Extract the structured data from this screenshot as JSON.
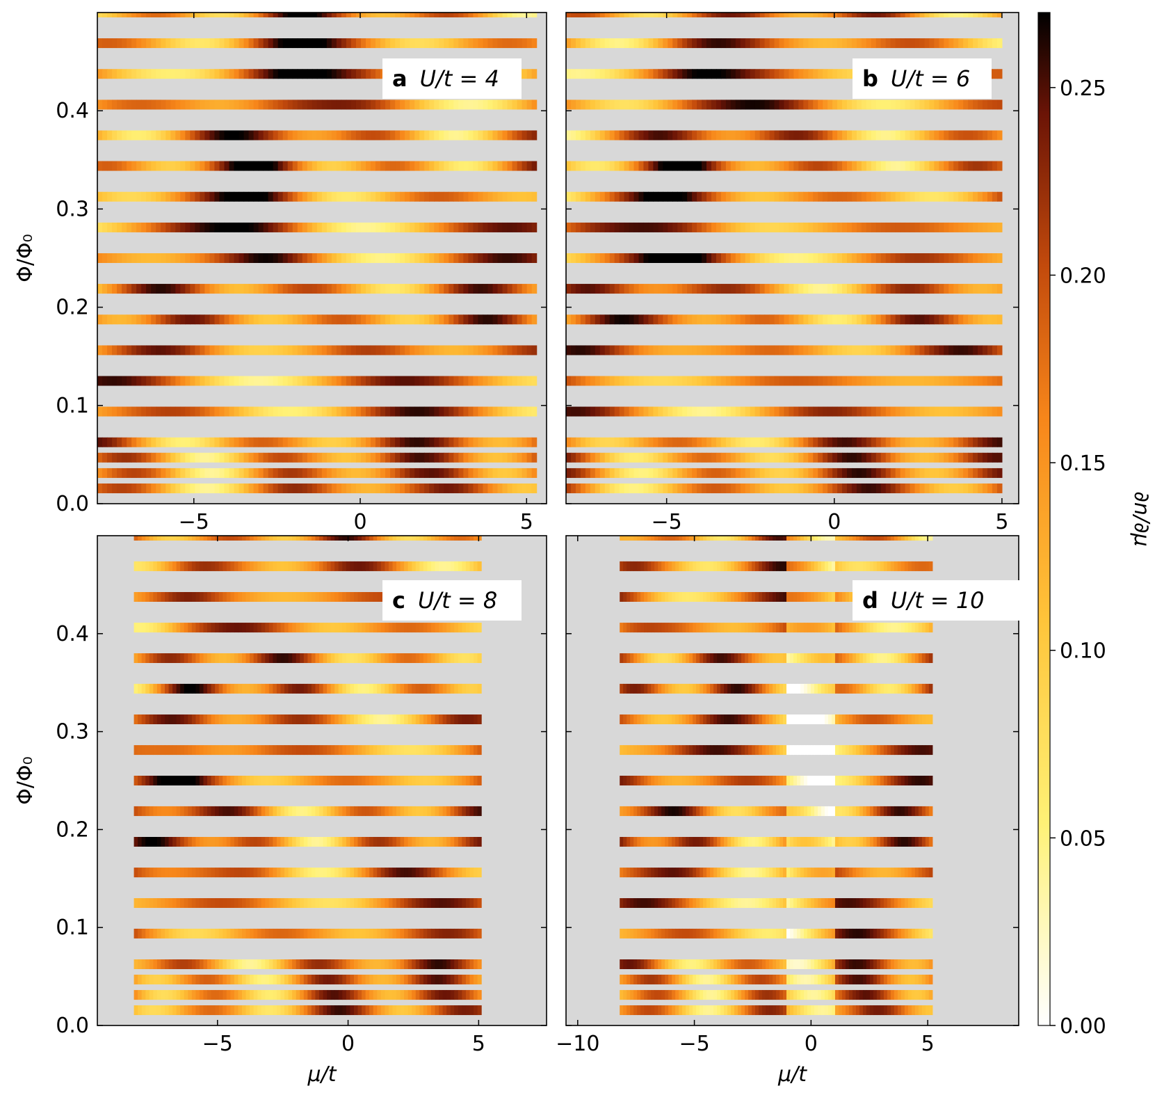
{
  "colorbar": {
    "label": "∂n/∂μ",
    "range": [
      0,
      0.27
    ],
    "ticks": [
      0.0,
      0.05,
      0.1,
      0.15,
      0.2,
      0.25
    ],
    "tick_labels": [
      "0.00",
      "0.05",
      "0.10",
      "0.15",
      "0.20",
      "0.25"
    ],
    "colormap": "afmhot_r"
  },
  "chart_data": [
    {
      "type": "heatmap",
      "panel": "a",
      "label": "U/t = 4",
      "U_over_t": 4,
      "xlabel": "",
      "ylabel": "Φ/Φ₀",
      "xlim": [
        -7.9,
        5.6
      ],
      "ylim": [
        0,
        0.5
      ],
      "xticks": [
        -5,
        0,
        5
      ],
      "xtick_labels": [
        "−5",
        "0",
        "5"
      ],
      "yticks": [
        0.0,
        0.1,
        0.2,
        0.3,
        0.4
      ],
      "ytick_labels": [
        "0.0",
        "0.1",
        "0.2",
        "0.3",
        "0.4"
      ],
      "flux_values": [
        0.0156,
        0.0312,
        0.0469,
        0.0625,
        0.0938,
        0.125,
        0.1562,
        0.1875,
        0.2188,
        0.25,
        0.2812,
        0.3125,
        0.3438,
        0.375,
        0.4062,
        0.4375,
        0.4688,
        0.5
      ],
      "mu_range": [
        -7.9,
        5.3
      ]
    },
    {
      "type": "heatmap",
      "panel": "b",
      "label": "U/t = 6",
      "U_over_t": 6,
      "xlabel": "",
      "ylabel": "",
      "xlim": [
        -8.0,
        5.5
      ],
      "ylim": [
        0,
        0.5
      ],
      "xticks": [
        -5,
        0,
        5
      ],
      "xtick_labels": [
        "−5",
        "0",
        "5"
      ],
      "yticks": [
        0.0,
        0.1,
        0.2,
        0.3,
        0.4
      ],
      "flux_values": [
        0.0156,
        0.0312,
        0.0469,
        0.0625,
        0.0938,
        0.125,
        0.1562,
        0.1875,
        0.2188,
        0.25,
        0.2812,
        0.3125,
        0.3438,
        0.375,
        0.4062,
        0.4375,
        0.4688,
        0.5
      ],
      "mu_range": [
        -8.0,
        5.0
      ]
    },
    {
      "type": "heatmap",
      "panel": "c",
      "label": "U/t = 8",
      "U_over_t": 8,
      "xlabel": "μ/t",
      "ylabel": "Φ/Φ₀",
      "xlim": [
        -9.6,
        7.6
      ],
      "ylim": [
        0,
        0.5
      ],
      "xticks": [
        -5,
        0,
        5
      ],
      "xtick_labels": [
        "−5",
        "0",
        "5"
      ],
      "yticks": [
        0.0,
        0.1,
        0.2,
        0.3,
        0.4
      ],
      "ytick_labels": [
        "0.0",
        "0.1",
        "0.2",
        "0.3",
        "0.4"
      ],
      "flux_values": [
        0.0156,
        0.0312,
        0.0469,
        0.0625,
        0.0938,
        0.125,
        0.1562,
        0.1875,
        0.2188,
        0.25,
        0.2812,
        0.3125,
        0.3438,
        0.375,
        0.4062,
        0.4375,
        0.4688,
        0.5
      ],
      "mu_range": [
        -8.2,
        5.1
      ]
    },
    {
      "type": "heatmap",
      "panel": "d",
      "label": "U/t = 10",
      "U_over_t": 10,
      "xlabel": "μ/t",
      "ylabel": "",
      "xlim": [
        -10.5,
        8.9
      ],
      "ylim": [
        0,
        0.5
      ],
      "xticks": [
        -10,
        -5,
        0,
        5
      ],
      "xtick_labels": [
        "−10",
        "−5",
        "0",
        "5"
      ],
      "yticks": [
        0.0,
        0.1,
        0.2,
        0.3,
        0.4
      ],
      "flux_values": [
        0.0156,
        0.0312,
        0.0469,
        0.0625,
        0.0938,
        0.125,
        0.1562,
        0.1875,
        0.2188,
        0.25,
        0.2812,
        0.3125,
        0.3438,
        0.375,
        0.4062,
        0.4375,
        0.4688,
        0.5
      ],
      "mu_range": [
        -8.2,
        5.2
      ]
    }
  ]
}
